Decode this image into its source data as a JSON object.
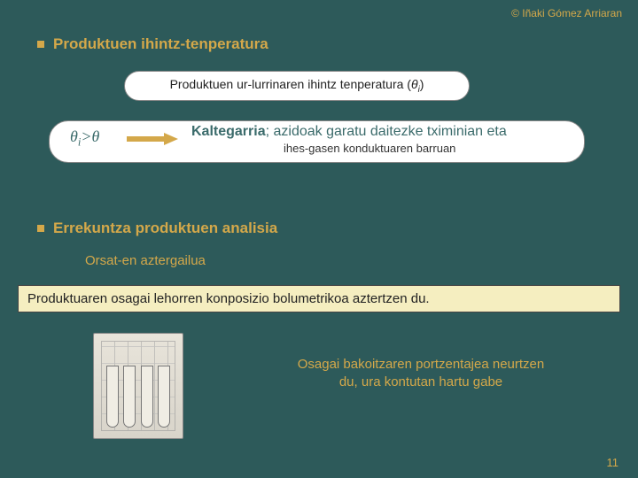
{
  "copyright": "© Iñaki Gómez Arriaran",
  "section1": {
    "title": "Produktuen ihintz-tenperatura",
    "pill": "Produktuen ur-lurrinaren ihintz tenperatura (θᵢ)",
    "condition": "θᵢ>θ",
    "kaltegarria_label": "Kaltegarria",
    "kaltegarria_rest": "; azidoak garatu daitezke tximinian eta",
    "kaltegarria_line2": "ihes-gasen konduktuaren barruan"
  },
  "section2": {
    "title": "Errekuntza produktuen analisia",
    "subheading": "Orsat-en aztergailua",
    "yellowbox": "Produktuaren osagai lehorren konposizio bolumetrikoa aztertzen du.",
    "bottom_text": "Osagai bakoitzaren portzentajea neurtzen du, ura kontutan hartu gabe"
  },
  "page_number": "11",
  "colors": {
    "background": "#2d5a5a",
    "accent": "#d4a84a",
    "pill_bg": "#ffffff",
    "yellow_bg": "#f5eec0",
    "teal_text": "#3b6b6b"
  }
}
